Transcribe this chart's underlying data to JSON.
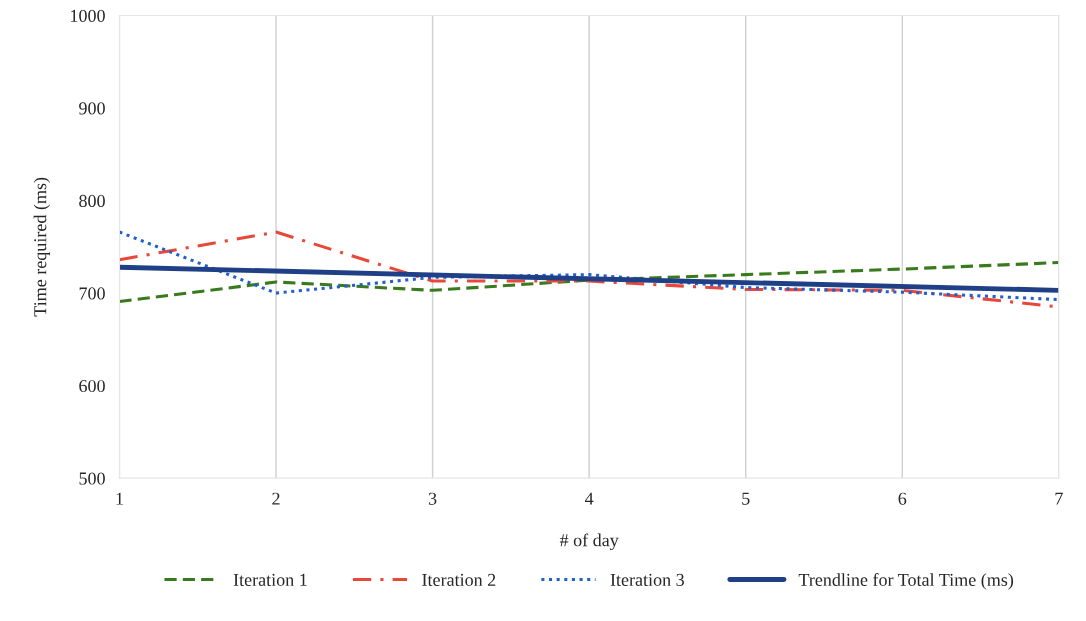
{
  "chart_data": {
    "type": "line",
    "xlabel": "# of day",
    "ylabel": "Time required (ms)",
    "x": [
      1,
      2,
      3,
      4,
      5,
      6,
      7
    ],
    "series": [
      {
        "name": "Iteration 1",
        "color": "#3a7a1e",
        "line_style": "dashed",
        "values": [
          691,
          712,
          703,
          714,
          720,
          726,
          733
        ]
      },
      {
        "name": "Iteration 2",
        "color": "#e8483a",
        "line_style": "dashdot",
        "values": [
          736,
          766,
          713,
          713,
          704,
          703,
          685
        ]
      },
      {
        "name": "Iteration 3",
        "color": "#1f5fd0",
        "line_style": "dotted",
        "values": [
          766,
          700,
          717,
          720,
          706,
          701,
          693
        ]
      },
      {
        "name": "Trendline for Total Time (ms)",
        "color": "#1f3f87",
        "line_style": "solid",
        "x": [
          1,
          7
        ],
        "values": [
          728,
          703
        ]
      }
    ],
    "xlim": [
      1,
      7
    ],
    "xticks": [
      1,
      2,
      3,
      4,
      5,
      6,
      7
    ],
    "ylim": [
      500,
      1000
    ],
    "yticks": [
      500,
      600,
      700,
      800,
      900,
      1000
    ],
    "grid": "x",
    "legend": "bottom",
    "marker": "none"
  }
}
